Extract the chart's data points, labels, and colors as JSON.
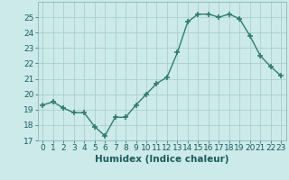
{
  "x": [
    0,
    1,
    2,
    3,
    4,
    5,
    6,
    7,
    8,
    9,
    10,
    11,
    12,
    13,
    14,
    15,
    16,
    17,
    18,
    19,
    20,
    21,
    22,
    23
  ],
  "y": [
    19.3,
    19.5,
    19.1,
    18.8,
    18.8,
    17.9,
    17.3,
    18.5,
    18.5,
    19.3,
    20.0,
    20.7,
    21.1,
    22.7,
    24.7,
    25.2,
    25.2,
    25.0,
    25.2,
    24.9,
    23.8,
    22.5,
    21.8,
    21.2
  ],
  "line_color": "#2e7d6e",
  "marker": "+",
  "markersize": 4,
  "linewidth": 1.0,
  "xlabel": "Humidex (Indice chaleur)",
  "ylim": [
    17,
    26
  ],
  "xlim": [
    -0.5,
    23.5
  ],
  "yticks": [
    17,
    18,
    19,
    20,
    21,
    22,
    23,
    24,
    25
  ],
  "xticks": [
    0,
    1,
    2,
    3,
    4,
    5,
    6,
    7,
    8,
    9,
    10,
    11,
    12,
    13,
    14,
    15,
    16,
    17,
    18,
    19,
    20,
    21,
    22,
    23
  ],
  "bg_color": "#cceaea",
  "grid_color": "#aacece",
  "tick_color": "#1a5c5c",
  "tick_label_fontsize": 6.5,
  "xlabel_fontsize": 7.5
}
